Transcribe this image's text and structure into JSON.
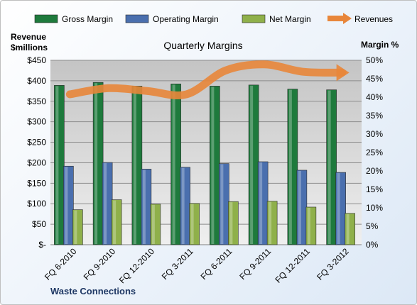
{
  "chart_data": {
    "type": "bar",
    "title": "Quarterly Margins",
    "company": "Waste Connections",
    "left_axis_title": [
      "Revenue",
      "$millions"
    ],
    "right_axis_title": "Margin %",
    "categories": [
      "FQ 6-2010",
      "FQ 9-2010",
      "FQ 12-2010",
      "FQ 3-2011",
      "FQ 6-2011",
      "FQ 9-2011",
      "FQ 12-2011",
      "FQ 3-2012"
    ],
    "left_ticks": [
      "$-",
      "$50",
      "$100",
      "$150",
      "$200",
      "$250",
      "$300",
      "$350",
      "$400",
      "$450"
    ],
    "right_ticks": [
      "0%",
      "5%",
      "10%",
      "15%",
      "20%",
      "25%",
      "30%",
      "35%",
      "40%",
      "45%",
      "50%"
    ],
    "left_range": [
      0,
      450
    ],
    "right_range": [
      0,
      50
    ],
    "grid": true,
    "legend_position": "top",
    "series": [
      {
        "name": "Gross Margin",
        "axis": "right",
        "kind": "bar",
        "color": "#1e7a3c",
        "values": [
          43.2,
          44.0,
          43.0,
          43.6,
          43.0,
          43.3,
          42.2,
          42.0
        ]
      },
      {
        "name": "Operating Margin",
        "axis": "right",
        "kind": "bar",
        "color": "#4a6fae",
        "values": [
          21.3,
          22.3,
          20.5,
          21.0,
          22.0,
          22.5,
          20.2,
          19.6
        ]
      },
      {
        "name": "Net Margin",
        "axis": "right",
        "kind": "bar",
        "color": "#8fb04a",
        "values": [
          9.5,
          12.2,
          11.0,
          11.2,
          11.7,
          11.8,
          10.2,
          8.5
        ]
      },
      {
        "name": "Revenues",
        "axis": "left",
        "kind": "line",
        "color": "#e8863a",
        "values": [
          367,
          382,
          375,
          367,
          425,
          440,
          422,
          420
        ]
      }
    ]
  }
}
